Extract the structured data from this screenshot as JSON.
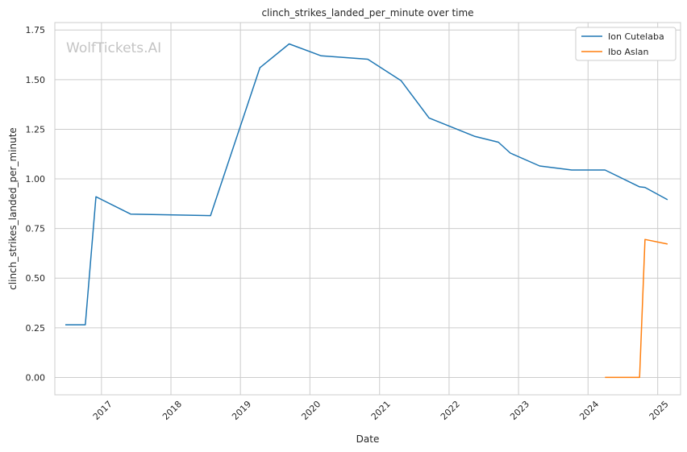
{
  "chart_data": {
    "type": "line",
    "title": "clinch_strikes_landed_per_minute over time",
    "xlabel": "Date",
    "ylabel": "clinch_strikes_landed_per_minute",
    "watermark": "WolfTickets.AI",
    "xlim": [
      "2016-05-01",
      "2025-05-01"
    ],
    "ylim": [
      -0.0875,
      1.7875
    ],
    "x_ticks": [
      "2017",
      "2018",
      "2019",
      "2020",
      "2021",
      "2022",
      "2023",
      "2024",
      "2025"
    ],
    "y_ticks": [
      "0.00",
      "0.25",
      "0.50",
      "0.75",
      "1.00",
      "1.25",
      "1.50",
      "1.75"
    ],
    "grid": true,
    "legend_position": "top-right",
    "series": [
      {
        "name": "Ion Cutelaba",
        "color": "#1f77b4",
        "points": [
          [
            "2016-06-25",
            0.265
          ],
          [
            "2016-10-08",
            0.265
          ],
          [
            "2016-12-03",
            0.91
          ],
          [
            "2017-06-03",
            0.823
          ],
          [
            "2018-07-28",
            0.815
          ],
          [
            "2019-04-13",
            1.56
          ],
          [
            "2019-09-14",
            1.68
          ],
          [
            "2020-02-29",
            1.62
          ],
          [
            "2020-10-31",
            1.603
          ],
          [
            "2021-04-24",
            1.495
          ],
          [
            "2021-09-18",
            1.307
          ],
          [
            "2022-05-14",
            1.215
          ],
          [
            "2022-09-17",
            1.185
          ],
          [
            "2022-11-19",
            1.13
          ],
          [
            "2023-04-22",
            1.065
          ],
          [
            "2023-10-07",
            1.045
          ],
          [
            "2024-03-30",
            1.045
          ],
          [
            "2024-09-28",
            0.96
          ],
          [
            "2024-10-26",
            0.957
          ],
          [
            "2025-02-22",
            0.895
          ]
        ]
      },
      {
        "name": "Ibo Aslan",
        "color": "#ff7f0e",
        "points": [
          [
            "2024-03-30",
            0.0
          ],
          [
            "2024-09-28",
            0.0
          ],
          [
            "2024-10-26",
            0.695
          ],
          [
            "2025-02-22",
            0.672
          ]
        ]
      }
    ]
  }
}
